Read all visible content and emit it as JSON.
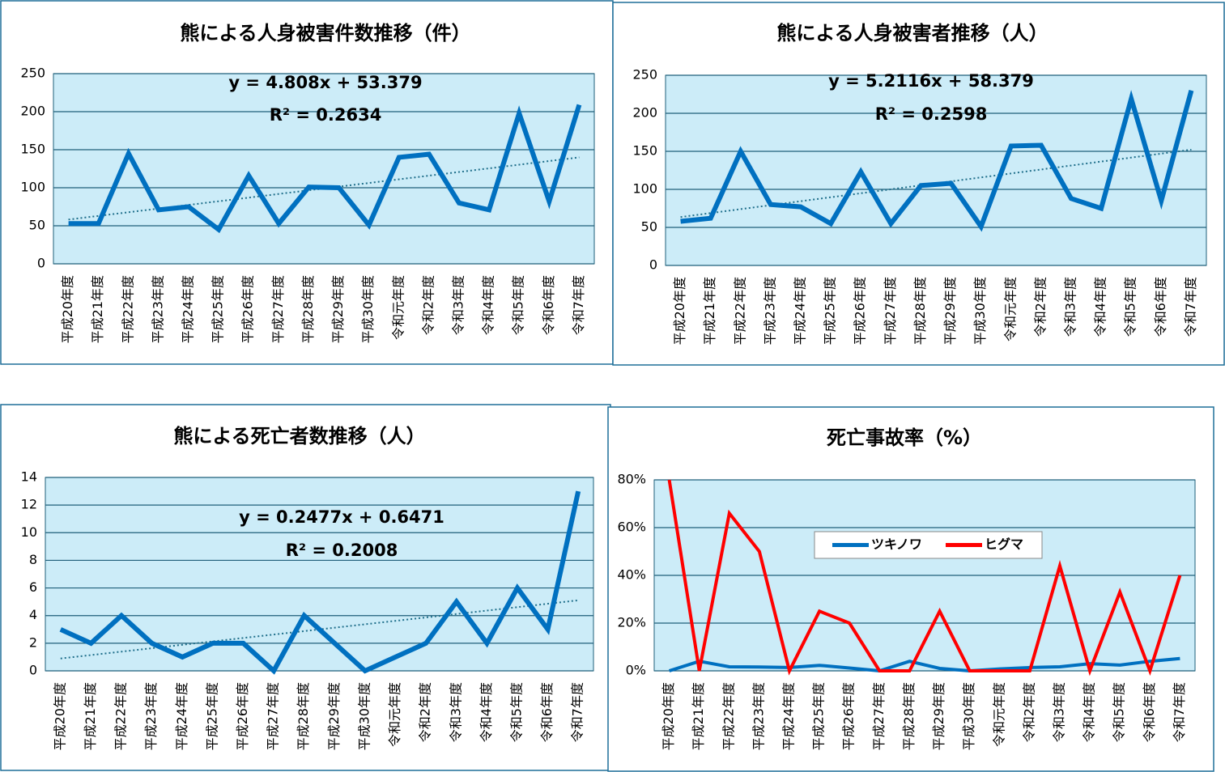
{
  "chart_data": [
    {
      "type": "line",
      "title": "熊による人身被害件数推移（件）",
      "categories": [
        "平成20年度",
        "平成21年度",
        "平成22年度",
        "平成23年度",
        "平成24年度",
        "平成25年度",
        "平成26年度",
        "平成27年度",
        "平成28年度",
        "平成29年度",
        "平成30年度",
        "令和元年度",
        "令和2年度",
        "令和3年度",
        "令和4年度",
        "令和5年度",
        "令和6年度",
        "令和7年度"
      ],
      "values": [
        53,
        53,
        145,
        71,
        75,
        45,
        116,
        53,
        101,
        100,
        51,
        140,
        144,
        80,
        71,
        198,
        82,
        209
      ],
      "color": "#0070c0",
      "ylim": [
        0,
        250
      ],
      "yticks": [
        0,
        50,
        100,
        150,
        200,
        250
      ],
      "grid": true,
      "trendline": {
        "equation": "y = 4.808x + 53.379",
        "r_squared": "R² = 0.2634",
        "slope": 4.808,
        "intercept": 53.379,
        "color": "#1f6f8b"
      }
    },
    {
      "type": "line",
      "title": "熊による人身被害者推移（人）",
      "categories": [
        "平成20年度",
        "平成21年度",
        "平成22年度",
        "平成23年度",
        "平成24年度",
        "平成25年度",
        "平成26年度",
        "平成27年度",
        "平成28年度",
        "平成29年度",
        "平成30年度",
        "令和元年度",
        "令和2年度",
        "令和3年度",
        "令和4年度",
        "令和5年度",
        "令和6年度",
        "令和7年度"
      ],
      "values": [
        58,
        62,
        150,
        80,
        77,
        55,
        123,
        55,
        105,
        108,
        51,
        157,
        158,
        88,
        75,
        219,
        85,
        230
      ],
      "color": "#0070c0",
      "ylim": [
        0,
        250
      ],
      "yticks": [
        0,
        50,
        100,
        150,
        200,
        250
      ],
      "grid": true,
      "trendline": {
        "equation": "y = 5.2116x + 58.379",
        "r_squared": "R² = 0.2598",
        "slope": 5.2116,
        "intercept": 58.379,
        "color": "#1f6f8b"
      }
    },
    {
      "type": "line",
      "title": "熊による死亡者数推移（人）",
      "categories": [
        "平成20年度",
        "平成21年度",
        "平成22年度",
        "平成23年度",
        "平成24年度",
        "平成25年度",
        "平成26年度",
        "平成27年度",
        "平成28年度",
        "平成29年度",
        "平成30年度",
        "令和元年度",
        "令和2年度",
        "令和3年度",
        "令和4年度",
        "令和5年度",
        "令和6年度",
        "令和7年度"
      ],
      "values": [
        3,
        2,
        4,
        2,
        1,
        2,
        2,
        0,
        4,
        2,
        0,
        1,
        2,
        5,
        2,
        6,
        3,
        13
      ],
      "color": "#0070c0",
      "ylim": [
        0,
        14
      ],
      "yticks": [
        0,
        2,
        4,
        6,
        8,
        10,
        12,
        14
      ],
      "grid": true,
      "trendline": {
        "equation": "y = 0.2477x + 0.6471",
        "r_squared": "R² = 0.2008",
        "slope": 0.2477,
        "intercept": 0.6471,
        "color": "#1f6f8b"
      }
    },
    {
      "type": "line",
      "title": "死亡事故率（%）",
      "categories": [
        "平成20年度",
        "平成21年度",
        "平成22年度",
        "平成23年度",
        "平成24年度",
        "平成25年度",
        "平成26年度",
        "平成27年度",
        "平成28年度",
        "平成29年度",
        "平成30年度",
        "令和元年度",
        "令和2年度",
        "令和3年度",
        "令和4年度",
        "令和5年度",
        "令和6年度",
        "令和7年度"
      ],
      "series": [
        {
          "name": "ツキノワ",
          "color": "#0070c0",
          "values": [
            0,
            4,
            1.7,
            1.6,
            1.4,
            2.3,
            1.2,
            0,
            4,
            1,
            0,
            0.8,
            1.4,
            1.7,
            3,
            2.4,
            4,
            5.2
          ]
        },
        {
          "name": "ヒグマ",
          "color": "#ff0000",
          "values": [
            80,
            0,
            66,
            50,
            0,
            25,
            20,
            0,
            0,
            25,
            0,
            0,
            0,
            44,
            0,
            33,
            0,
            40
          ]
        }
      ],
      "ylim": [
        0,
        80
      ],
      "yticks": [
        {
          "value": 0,
          "label": "0%"
        },
        {
          "value": 20,
          "label": "20%"
        },
        {
          "value": 40,
          "label": "40%"
        },
        {
          "value": 60,
          "label": "60%"
        },
        {
          "value": 80,
          "label": "80%"
        }
      ],
      "grid": true,
      "legend": "inside-top"
    }
  ]
}
